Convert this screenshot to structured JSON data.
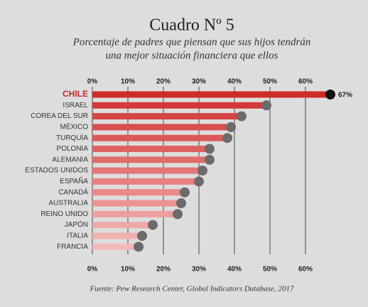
{
  "chart_data": {
    "type": "lollipop-bar",
    "title": "Cuadro Nº 5",
    "subtitle": [
      "Porcentaje de padres que piensan que sus hijos tendrán",
      "una mejor situación financiera que ellos"
    ],
    "source": "Fuente: Pew Research Center, Global Indicators Database, 2017",
    "categories": [
      "CHILE",
      "ISRAEL",
      "COREA DEL SUR",
      "MÉXICO",
      "TURQUÍA",
      "POLONIA",
      "ALEMANIA",
      "ESTADOS UNIDOS",
      "ESPAÑA",
      "CANADÁ",
      "AUSTRALIA",
      "REINO UNIDO",
      "JAPÓN",
      "ITALIA",
      "FRANCIA"
    ],
    "values": [
      67,
      49,
      42,
      39,
      38,
      33,
      33,
      31,
      30,
      26,
      25,
      24,
      17,
      14,
      13
    ],
    "value_labels": [
      "67%",
      null,
      null,
      null,
      null,
      null,
      null,
      null,
      null,
      null,
      null,
      null,
      null,
      null,
      null
    ],
    "colors": [
      "#cf2b2b",
      "#d33a3a",
      "#d64444",
      "#d94e4e",
      "#dc5858",
      "#df6262",
      "#e26c6c",
      "#e47676",
      "#e78080",
      "#e98a8a",
      "#eb9494",
      "#ed9e9e",
      "#efa8a8",
      "#f1b1b1",
      "#f2baba"
    ],
    "dot_color": "#6b6b6b",
    "highlight_index": 0,
    "highlight_color": "#c8282b",
    "highlight_dot_color": "#111111",
    "xlim": [
      0,
      70
    ],
    "xticks": [
      {
        "value": 0,
        "label": "0%"
      },
      {
        "value": 10,
        "label": "10%"
      },
      {
        "value": 20,
        "label": "20%"
      },
      {
        "value": 30,
        "label": "30%"
      },
      {
        "value": 40,
        "label": "40%"
      },
      {
        "value": 50,
        "label": "50%"
      },
      {
        "value": 60,
        "label": "60%"
      }
    ],
    "grid": true
  }
}
